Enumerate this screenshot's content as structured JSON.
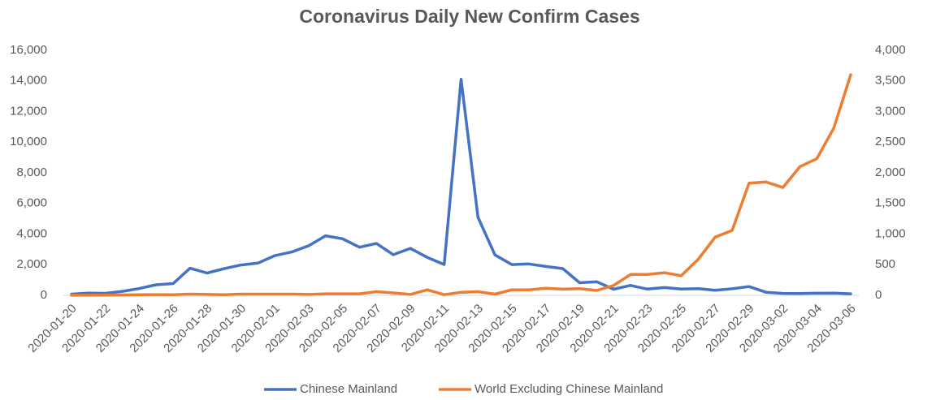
{
  "chart_data": {
    "type": "line",
    "title": "Coronavirus Daily New Confirm Cases",
    "categories": [
      "2020-01-20",
      null,
      "2020-01-22",
      null,
      "2020-01-24",
      null,
      "2020-01-26",
      null,
      "2020-01-28",
      null,
      "2020-01-30",
      null,
      "2020-02-01",
      null,
      "2020-02-03",
      null,
      "2020-02-05",
      null,
      "2020-02-07",
      null,
      "2020-02-09",
      null,
      "2020-02-11",
      null,
      "2020-02-13",
      null,
      "2020-02-15",
      null,
      "2020-02-17",
      null,
      "2020-02-19",
      null,
      "2020-02-21",
      null,
      "2020-02-23",
      null,
      "2020-02-25",
      null,
      "2020-02-27",
      null,
      "2020-02-29",
      null,
      "2020-03-02",
      null,
      "2020-03-04",
      null,
      "2020-03-06"
    ],
    "series": [
      {
        "name": "Chinese Mainland",
        "color": "#4472c4",
        "values": [
          77,
          149,
          131,
          259,
          444,
          688,
          769,
          1771,
          1459,
          1737,
          1982,
          2102,
          2590,
          2829,
          3235,
          3887,
          3694,
          3143,
          3385,
          2652,
          3070,
          2478,
          2015,
          14108,
          5090,
          2641,
          2008,
          2048,
          1886,
          1749,
          820,
          890,
          397,
          648,
          409,
          508,
          406,
          433,
          327,
          427,
          573,
          202,
          125,
          119,
          139,
          143,
          99
        ]
      },
      {
        "name": "World Excluding Chinese Mainland",
        "color": "#ed7d31",
        "axis": "y2",
        "values": [
          1,
          1,
          3,
          6,
          9,
          12,
          10,
          20,
          14,
          10,
          20,
          20,
          20,
          20,
          15,
          25,
          25,
          25,
          60,
          40,
          15,
          90,
          10,
          50,
          60,
          20,
          90,
          90,
          115,
          100,
          110,
          80,
          160,
          340,
          340,
          370,
          320,
          590,
          950,
          1060,
          1830,
          1850,
          1760,
          2100,
          2230,
          2730,
          3600
        ]
      }
    ],
    "ylim": [
      0,
      16000
    ],
    "yticks": [
      0,
      {
        "value": 2000,
        "label": "2,000"
      },
      {
        "value": 4000,
        "label": "4,000"
      },
      {
        "value": 6000,
        "label": "6,000"
      },
      {
        "value": 8000,
        "label": "8,000"
      },
      {
        "value": 10000,
        "label": "10,000"
      },
      {
        "value": 12000,
        "label": "12,000"
      },
      {
        "value": 14000,
        "label": "14,000"
      },
      {
        "value": 16000,
        "label": "16,000"
      }
    ],
    "y2lim": [
      0,
      4000
    ],
    "y2ticks": [
      0,
      500,
      {
        "value": 1000,
        "label": "1,000"
      },
      {
        "value": 1500,
        "label": "1,500"
      },
      {
        "value": 2000,
        "label": "2,000"
      },
      {
        "value": 2500,
        "label": "2,500"
      },
      {
        "value": 3000,
        "label": "3,000"
      },
      {
        "value": 3500,
        "label": "3,500"
      },
      {
        "value": 4000,
        "label": "4,000"
      }
    ],
    "grid": false,
    "legend": "bottom"
  }
}
